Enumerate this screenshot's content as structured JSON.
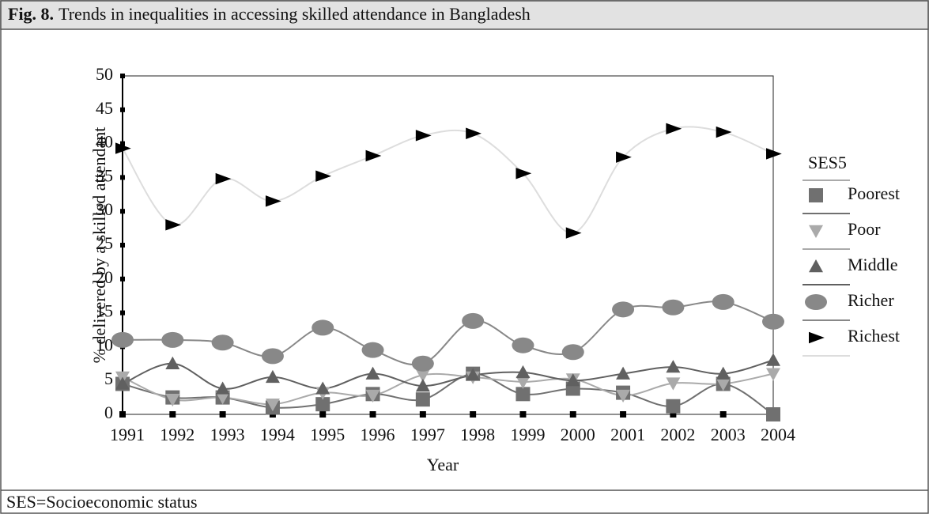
{
  "chart_data": {
    "type": "line",
    "figure_label": "Fig. 8.",
    "title": "Trends in inequalities in accessing skilled attendance in Bangladesh",
    "x_label": "Year",
    "y_label": "% delivered by a skilled attendant",
    "legend_title": "SES5",
    "footnote": "SES=Socioeconomic status",
    "categories": [
      "1991",
      "1992",
      "1993",
      "1994",
      "1995",
      "1996",
      "1997",
      "1998",
      "1999",
      "2000",
      "2001",
      "2002",
      "2003",
      "2004"
    ],
    "ylim": [
      0,
      50
    ],
    "yticks": [
      0,
      5,
      10,
      15,
      20,
      25,
      30,
      35,
      40,
      45,
      50
    ],
    "legend": "right",
    "series": [
      {
        "name": "Poorest",
        "color": "#707070",
        "marker": "square",
        "values": [
          4.5,
          2.5,
          2.5,
          1,
          1.5,
          3,
          2.2,
          6,
          3,
          3.8,
          3.2,
          1.2,
          4.5,
          0
        ]
      },
      {
        "name": "Poor",
        "color": "#aaaaaa",
        "marker": "triangle-down",
        "values": [
          5.5,
          2.2,
          2.5,
          1.5,
          3.2,
          2.8,
          5.8,
          5.5,
          4.8,
          5.2,
          2.8,
          4.6,
          4.5,
          6
        ]
      },
      {
        "name": "Middle",
        "color": "#606060",
        "marker": "triangle-up",
        "values": [
          4.5,
          7.5,
          3.8,
          5.5,
          3.8,
          6,
          4.2,
          5.8,
          6.2,
          5,
          6,
          7,
          6,
          8
        ]
      },
      {
        "name": "Richer",
        "color": "#888888",
        "marker": "circle",
        "values": [
          11,
          11,
          10.6,
          8.6,
          12.8,
          9.5,
          7.5,
          13.8,
          10.2,
          9.2,
          15.5,
          15.8,
          16.6,
          13.7
        ]
      },
      {
        "name": "Richest",
        "color": "#dddddd",
        "marker": "triangle-right",
        "values": [
          39.3,
          28,
          34.8,
          31.5,
          35.2,
          38.2,
          41.2,
          41.5,
          35.6,
          26.8,
          38,
          42.2,
          41.7,
          38.5
        ]
      }
    ]
  }
}
